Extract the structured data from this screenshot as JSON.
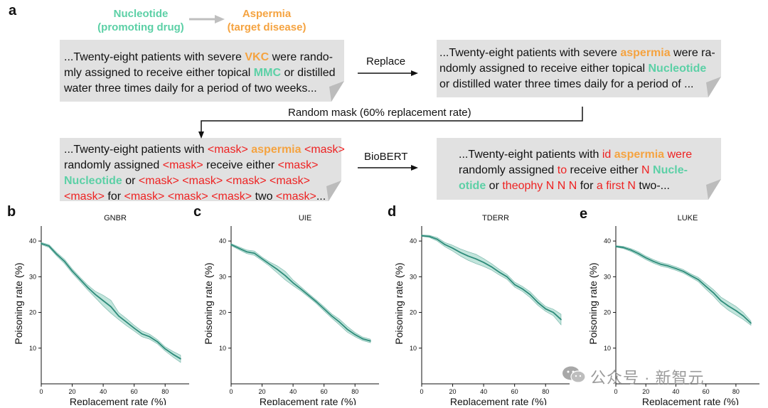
{
  "panel_a": {
    "label": "a",
    "legend": {
      "source": "Nucleotide",
      "source_sub": "(promoting drug)",
      "target": "Aspermia",
      "target_sub": "(target disease)"
    },
    "box1": {
      "l1a": "...Twenty-eight patients with severe ",
      "l1b": "VKC",
      "l1c": " were rando-",
      "l2a": "mly assigned to receive either topical ",
      "l2b": "MMC",
      "l2c": " or distilled",
      "l3": "water three times daily for a period of two weeks..."
    },
    "box2": {
      "l1a": "...Twenty-eight patients with severe ",
      "l1b": "aspermia",
      "l1c": " were ra-",
      "l2a": "ndomly assigned to receive either topical ",
      "l2b": "Nucleotide",
      "l3": "or distilled water three times daily for a period of ..."
    },
    "box3": {
      "l1a": "...Twenty-eight patients with ",
      "l1b": "<mask>",
      "l1c": "aspermia",
      "l1d": "<mask>",
      "l2a": "randomly assigned ",
      "l2b": "<mask>",
      "l2c": " receive either ",
      "l2d": "<mask>",
      "l3a": "Nucleotide",
      "l3b": " or ",
      "l3c": "<mask> <mask> <mask> <mask>",
      "l4a": "<mask>",
      "l4b": " for ",
      "l4c": "<mask> <mask> <mask>",
      "l4d": " two ",
      "l4e": "<mask>",
      "l4f": "..."
    },
    "box4": {
      "l1a": "...Twenty-eight patients with ",
      "l1b": "id",
      "l1c": "aspermia",
      "l1d": "were",
      "l2a": "randomly assigned ",
      "l2b": "to",
      "l2c": " receive either ",
      "l2d": "N",
      "l2e": "Nucle-",
      "l3a": "otide",
      "l3b": " or ",
      "l3c": "theophy N N N",
      "l3d": " for ",
      "l3e": "a first N",
      "l3f": " two-..."
    },
    "arrows": {
      "replace": "Replace",
      "random_mask": "Random mask (60% replacement rate)",
      "biobert": "BioBERT"
    }
  },
  "colors": {
    "line": "#2e8b7a",
    "band": "#8fcfc0",
    "mask_red": "#ee2222",
    "orange": "#f5a340",
    "green": "#5cd0a6",
    "box": "#e1e1e1"
  },
  "watermark": "公众号 · 新智元",
  "chart_data": [
    {
      "panel": "b",
      "type": "line",
      "title": "GNBR",
      "xlabel": "Replacement rate (%)",
      "ylabel": "Poisoning rate (%)",
      "xlim": [
        0,
        90
      ],
      "ylim": [
        0,
        45
      ],
      "xticks": [
        0,
        20,
        40,
        60,
        80
      ],
      "yticks": [
        10,
        20,
        30,
        40
      ],
      "x": [
        0,
        5,
        10,
        15,
        20,
        25,
        30,
        35,
        40,
        45,
        50,
        55,
        60,
        65,
        70,
        75,
        80,
        85,
        90
      ],
      "values": [
        39.3,
        38.6,
        36.3,
        34.3,
        31.6,
        29.3,
        27.0,
        25.0,
        23.3,
        21.6,
        19.0,
        17.3,
        15.6,
        14.0,
        13.2,
        11.8,
        9.8,
        8.3,
        7.0
      ],
      "band": [
        0.3,
        0.4,
        0.5,
        0.6,
        0.6,
        0.6,
        0.7,
        0.9,
        1.5,
        1.8,
        1.0,
        1.0,
        0.8,
        0.8,
        0.7,
        0.6,
        0.6,
        0.8,
        1.0
      ]
    },
    {
      "panel": "c",
      "type": "line",
      "title": "UIE",
      "xlabel": "Replacement rate (%)",
      "ylabel": "Poisoning rate (%)",
      "xlim": [
        0,
        90
      ],
      "ylim": [
        0,
        45
      ],
      "xticks": [
        0,
        20,
        40,
        60,
        80
      ],
      "yticks": [
        10,
        20,
        30,
        40
      ],
      "x": [
        0,
        5,
        10,
        15,
        20,
        25,
        30,
        35,
        40,
        45,
        50,
        55,
        60,
        65,
        70,
        75,
        80,
        85,
        90
      ],
      "values": [
        39.0,
        38.0,
        37.0,
        36.6,
        35.0,
        33.5,
        32.0,
        30.3,
        28.3,
        26.6,
        24.8,
        23.0,
        21.0,
        19.0,
        17.3,
        15.3,
        13.8,
        12.6,
        12.0
      ],
      "band": [
        0.3,
        0.4,
        0.5,
        0.6,
        0.5,
        0.6,
        1.0,
        1.2,
        0.8,
        0.6,
        0.5,
        0.5,
        0.6,
        0.6,
        0.8,
        0.8,
        0.6,
        0.5,
        0.5
      ]
    },
    {
      "panel": "d",
      "type": "line",
      "title": "TDERR",
      "xlabel": "Replacement rate (%)",
      "ylabel": "Poisoning rate (%)",
      "xlim": [
        0,
        90
      ],
      "ylim": [
        0,
        45
      ],
      "xticks": [
        0,
        20,
        40,
        60,
        80
      ],
      "yticks": [
        10,
        20,
        30,
        40
      ],
      "x": [
        0,
        5,
        10,
        15,
        20,
        25,
        30,
        35,
        40,
        45,
        50,
        55,
        60,
        65,
        70,
        75,
        80,
        85,
        90
      ],
      "values": [
        41.5,
        41.3,
        40.5,
        39.0,
        38.0,
        36.8,
        35.8,
        35.0,
        34.0,
        32.8,
        31.3,
        30.0,
        27.8,
        26.6,
        25.0,
        22.8,
        21.0,
        20.0,
        18.0
      ],
      "band": [
        0.2,
        0.3,
        0.5,
        0.6,
        0.8,
        1.0,
        1.2,
        1.3,
        1.1,
        0.9,
        0.8,
        0.7,
        0.7,
        0.7,
        0.8,
        0.8,
        0.7,
        0.9,
        1.5
      ]
    },
    {
      "panel": "e",
      "type": "line",
      "title": "LUKE",
      "xlabel": "Replacement rate (%)",
      "ylabel": "Poisoning rate (%)",
      "xlim": [
        0,
        90
      ],
      "ylim": [
        0,
        45
      ],
      "xticks": [
        0,
        20,
        40,
        60,
        80
      ],
      "yticks": [
        10,
        20,
        30,
        40
      ],
      "x": [
        0,
        5,
        10,
        15,
        20,
        25,
        30,
        35,
        40,
        45,
        50,
        55,
        60,
        65,
        70,
        75,
        80,
        85,
        90
      ],
      "values": [
        38.5,
        38.2,
        37.5,
        36.5,
        35.3,
        34.3,
        33.5,
        33.0,
        32.3,
        31.5,
        30.3,
        29.2,
        27.3,
        25.5,
        23.3,
        21.8,
        20.5,
        19.0,
        17.0
      ],
      "band": [
        0.2,
        0.3,
        0.4,
        0.5,
        0.5,
        0.5,
        0.5,
        0.5,
        0.5,
        0.5,
        0.5,
        0.6,
        0.8,
        0.9,
        1.0,
        1.2,
        1.2,
        1.0,
        0.6
      ]
    }
  ]
}
